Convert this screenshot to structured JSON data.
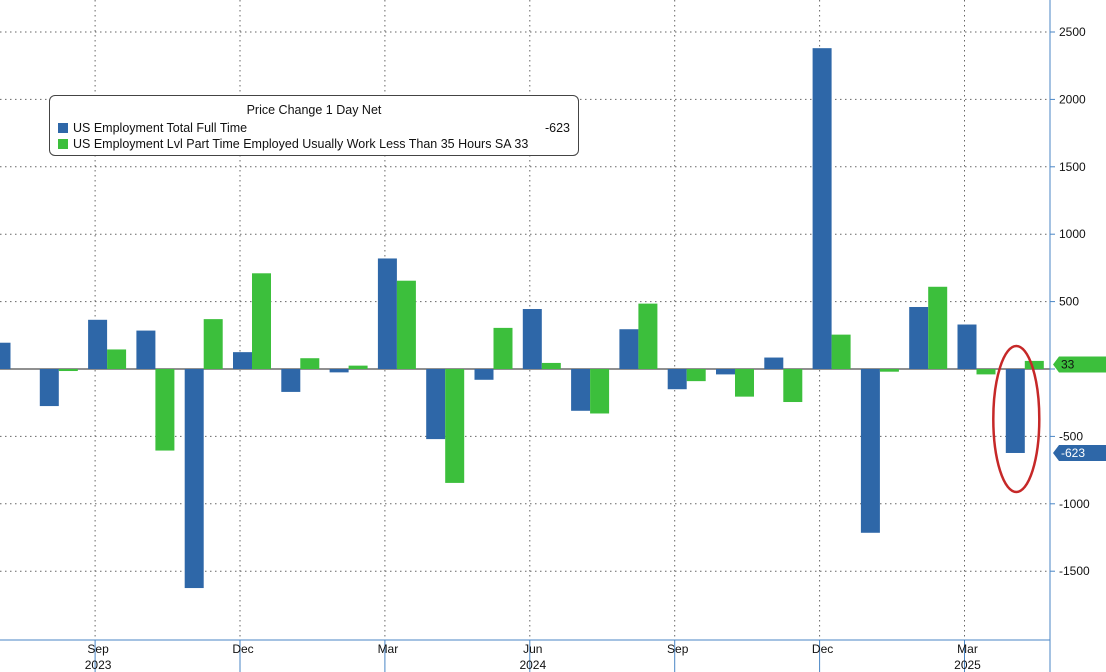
{
  "colors": {
    "full_time": "#2e67a8",
    "part_time": "#3cbf3c",
    "grid": "#666666",
    "axis": "#4a86c5",
    "circle": "#c62828"
  },
  "chart_data": {
    "type": "bar",
    "title": "Price Change 1 Day Net",
    "ylim": [
      -1975,
      2720
    ],
    "yticks": [
      2500,
      2000,
      1500,
      1000,
      500,
      0,
      -500,
      -1000,
      -1500
    ],
    "ytick_labels": [
      "2500",
      "2000",
      "1500",
      "1000",
      "500",
      "",
      "-500",
      "-1000",
      "-1500"
    ],
    "grid": true,
    "legend_position": "top-left",
    "categories": [
      "2023-07",
      "2023-08",
      "2023-09",
      "2023-10",
      "2023-11",
      "2023-12",
      "2024-01",
      "2024-02",
      "2024-03",
      "2024-04",
      "2024-05",
      "2024-06",
      "2024-07",
      "2024-08",
      "2024-09",
      "2024-10",
      "2024-11",
      "2024-12",
      "2025-01",
      "2025-02",
      "2025-03",
      "2025-04",
      "2025-05"
    ],
    "series": [
      {
        "name": "US Employment Total Full Time",
        "legend_value": "-623",
        "last_value_label": "-623",
        "values": [
          195,
          -275,
          365,
          285,
          -1625,
          125,
          -170,
          -25,
          820,
          -520,
          -80,
          445,
          -310,
          295,
          -150,
          -40,
          85,
          2380,
          -1215,
          460,
          330,
          -623,
          null
        ]
      },
      {
        "name": "US Employment Lvl Part Time Employed Usually Work Less Than 35 Hours SA",
        "legend_value": "33",
        "last_value_label": "33",
        "values": [
          null,
          -15,
          145,
          -605,
          370,
          710,
          80,
          25,
          655,
          -845,
          305,
          45,
          -330,
          485,
          -90,
          -205,
          -245,
          255,
          -20,
          610,
          -40,
          60,
          33
        ]
      }
    ],
    "x_month_labels": [
      {
        "index": 2,
        "label": "Sep"
      },
      {
        "index": 5,
        "label": "Dec"
      },
      {
        "index": 8,
        "label": "Mar"
      },
      {
        "index": 11,
        "label": "Jun"
      },
      {
        "index": 14,
        "label": "Sep"
      },
      {
        "index": 17,
        "label": "Dec"
      },
      {
        "index": 20,
        "label": "Mar"
      }
    ],
    "x_year_labels": [
      {
        "index": 2,
        "label": "2023"
      },
      {
        "index": 11,
        "label": "2024"
      },
      {
        "index": 20,
        "label": "2025"
      }
    ],
    "annotations": [
      {
        "type": "circle",
        "series_index": 0,
        "category_index": 21
      }
    ]
  }
}
